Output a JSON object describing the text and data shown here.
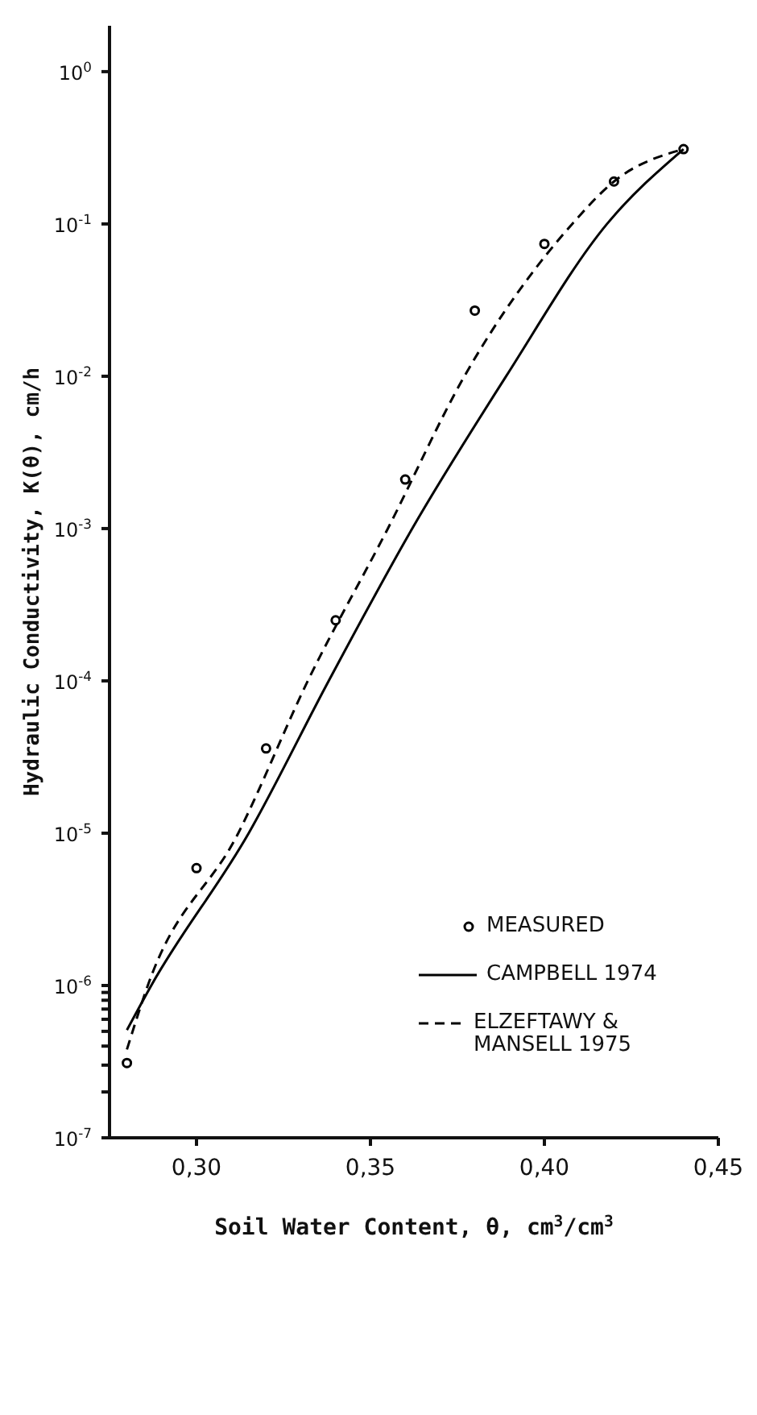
{
  "chart_data": {
    "type": "line",
    "xlabel": "Soil Water Content, θ, cm$^{3}$/cm$^{3}$",
    "ylabel": "Hydraulic Conductivity, K(θ), cm/h",
    "log": "y",
    "grid": false,
    "legend": "right",
    "xlim": [
      0.275,
      0.45
    ],
    "xticks": [
      {
        "value": 0.3,
        "label": "0,30"
      },
      {
        "value": 0.35,
        "label": "0,35"
      },
      {
        "value": 0.4,
        "label": "0,40"
      },
      {
        "value": 0.45,
        "label": "0,45"
      }
    ],
    "ylim": [
      1e-07,
      2
    ],
    "yticks": [
      {
        "value": 1e-07,
        "label": "10$^{-7}$"
      },
      {
        "value": 2e-07,
        "label": null
      },
      {
        "value": 3e-07,
        "label": null
      },
      {
        "value": 4e-07,
        "label": null
      },
      {
        "value": 5e-07,
        "label": null
      },
      {
        "value": 6e-07,
        "label": null
      },
      {
        "value": 7e-07,
        "label": null
      },
      {
        "value": 8e-07,
        "label": null
      },
      {
        "value": 9e-07,
        "label": null
      },
      {
        "value": 1e-06,
        "label": "10$^{-6}$"
      },
      {
        "value": 1e-05,
        "label": "10$^{-5}$"
      },
      {
        "value": 0.0001,
        "label": "10$^{-4}$"
      },
      {
        "value": 0.001,
        "label": "10$^{-3}$"
      },
      {
        "value": 0.01,
        "label": "10$^{-2}$"
      },
      {
        "value": 0.1,
        "label": "10$^{-1}$"
      },
      {
        "value": 1,
        "label": "10$^{0}$"
      }
    ],
    "series": [
      {
        "name": "MEASURED",
        "type": "scatter",
        "marker": "circle",
        "color": "#000000",
        "x": [
          0.28,
          0.3,
          0.32,
          0.34,
          0.36,
          0.38,
          0.4,
          0.42,
          0.44
        ],
        "values": [
          3.1e-07,
          5.9e-06,
          3.6e-05,
          0.00025,
          0.0021,
          0.027,
          0.074,
          0.19,
          0.31
        ]
      },
      {
        "name": "CAMPBELL 1974",
        "type": "line",
        "marker": "none",
        "line_style": "solid",
        "color": "#000000",
        "x": [
          0.28,
          0.287,
          0.315,
          0.338,
          0.362,
          0.389,
          0.418,
          0.44
        ],
        "values": [
          5.1e-07,
          1e-06,
          1e-05,
          0.0001,
          0.001,
          0.01,
          0.1,
          0.31
        ]
      },
      {
        "name": "ELZEFTAWY & MANSELL 1975",
        "type": "line",
        "marker": "none",
        "line_style": "dashed",
        "color": "#000000",
        "x": [
          0.28,
          0.286,
          0.312,
          0.332,
          0.355,
          0.377,
          0.408,
          0.42,
          0.44
        ],
        "values": [
          3.8e-07,
          1e-06,
          1e-05,
          0.0001,
          0.001,
          0.01,
          0.1,
          0.19,
          0.31
        ]
      }
    ]
  }
}
